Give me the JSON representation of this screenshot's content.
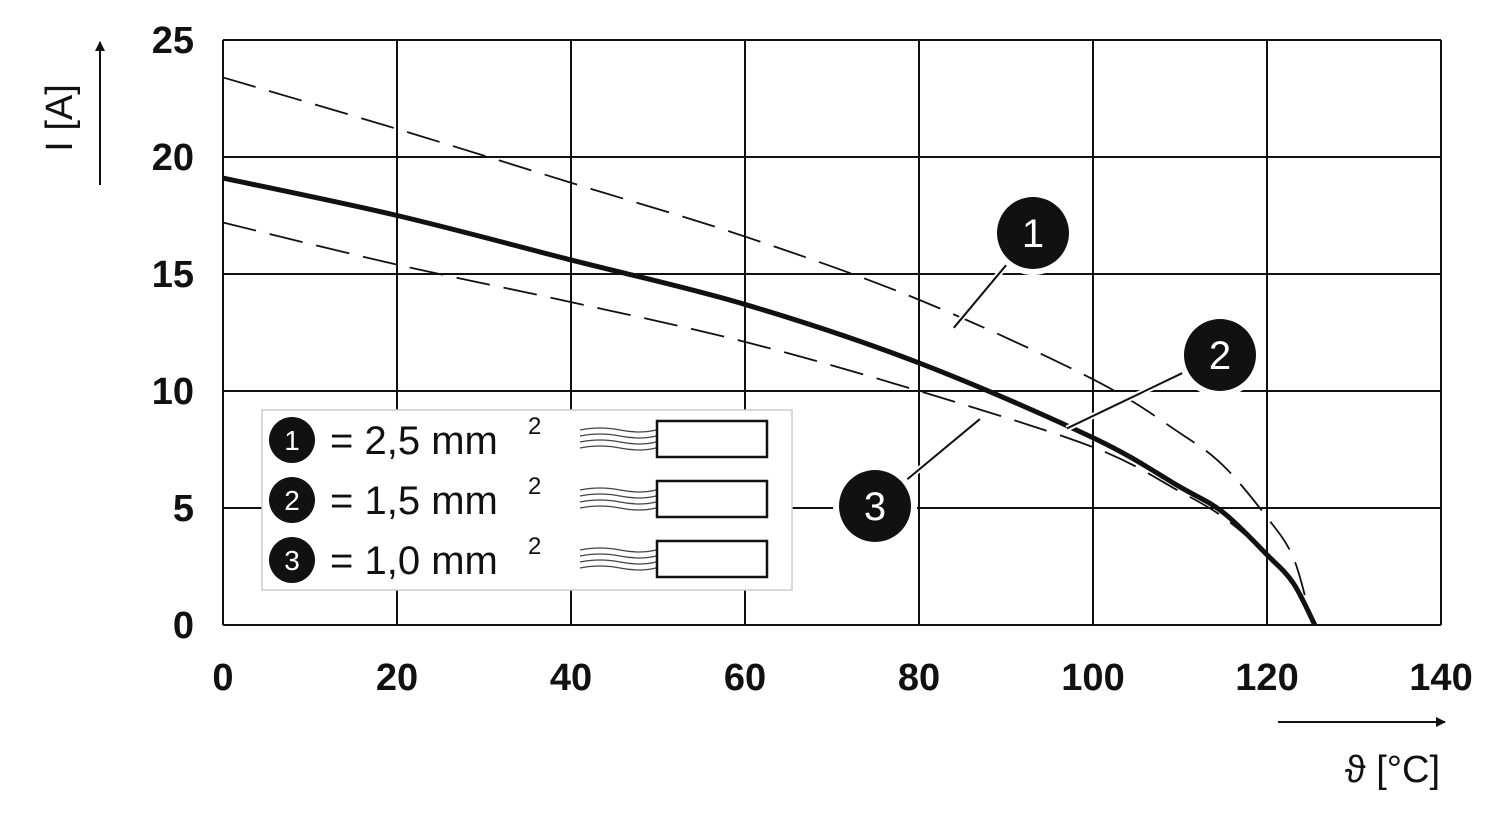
{
  "chart_data": {
    "type": "line",
    "xlabel": "ϑ [°C]",
    "ylabel": "I [A]",
    "xlim": [
      0,
      140
    ],
    "ylim": [
      0,
      25
    ],
    "x_ticks": [
      0,
      20,
      40,
      60,
      80,
      100,
      120,
      140
    ],
    "y_ticks": [
      0,
      5,
      10,
      15,
      20,
      25
    ],
    "grid": true,
    "legend_position": "bottom-left",
    "series": [
      {
        "name": "2,5 mm²",
        "marker": "1",
        "style": "dashed",
        "x": [
          0,
          20,
          40,
          60,
          80,
          100,
          110,
          115,
          120,
          123,
          125
        ],
        "y": [
          23.4,
          21.2,
          18.9,
          16.6,
          13.9,
          10.5,
          8.2,
          6.8,
          4.6,
          2.9,
          0.3
        ]
      },
      {
        "name": "1,5 mm²",
        "marker": "2",
        "style": "solid",
        "x": [
          0,
          20,
          40,
          60,
          80,
          100,
          110,
          115,
          120,
          123,
          125.5
        ],
        "y": [
          19.1,
          17.5,
          15.6,
          13.7,
          11.2,
          8.0,
          5.9,
          4.8,
          3.0,
          1.8,
          0
        ]
      },
      {
        "name": "1,0 mm²",
        "marker": "3",
        "style": "dashed",
        "x": [
          0,
          20,
          40,
          60,
          80,
          100,
          110,
          115,
          120,
          123,
          125
        ],
        "y": [
          17.2,
          15.4,
          13.8,
          12.1,
          10.0,
          7.6,
          5.7,
          4.6,
          3.0,
          1.7,
          0.3
        ]
      }
    ],
    "callouts": [
      {
        "label": "1",
        "series": 0,
        "x": 84,
        "y": 12.7
      },
      {
        "label": "2",
        "series": 1,
        "x": 97,
        "y": 8.4
      },
      {
        "label": "3",
        "series": 2,
        "x": 87,
        "y": 8.8
      }
    ]
  },
  "legend": {
    "items": [
      {
        "badge": "1",
        "text": "= 2,5 mm",
        "sup": "2"
      },
      {
        "badge": "2",
        "text": "= 1,5 mm",
        "sup": "2"
      },
      {
        "badge": "3",
        "text": "= 1,0 mm",
        "sup": "2"
      }
    ]
  }
}
